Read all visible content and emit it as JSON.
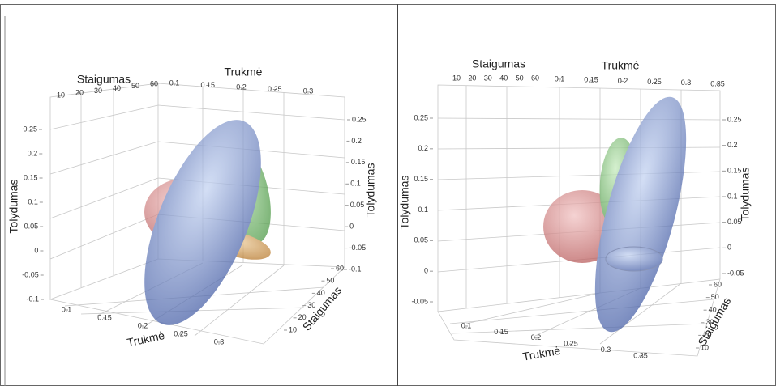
{
  "chart_data": [
    {
      "type": "ellipsoid3d",
      "x_label": "Trukmė",
      "y_label": "Staigumas",
      "z_label": "Tolydumas",
      "xticks": [
        0.1,
        0.15,
        0.2,
        0.25,
        0.3
      ],
      "yticks": [
        10,
        20,
        30,
        40,
        50,
        60
      ],
      "zticks": [
        0.25,
        0.2,
        0.15,
        0.1,
        0.05,
        0,
        -0.05,
        -0.1
      ]
    },
    {
      "type": "ellipsoid3d",
      "x_label": "Trukmė",
      "y_label": "Staigumas",
      "z_label": "Tolydumas",
      "xticks": [
        0.1,
        0.15,
        0.2,
        0.25,
        0.3,
        0.35
      ],
      "yticks": [
        10,
        20,
        30,
        40,
        50,
        60
      ],
      "zticks": [
        0.25,
        0.2,
        0.15,
        0.1,
        0.05,
        0,
        -0.05
      ]
    }
  ]
}
